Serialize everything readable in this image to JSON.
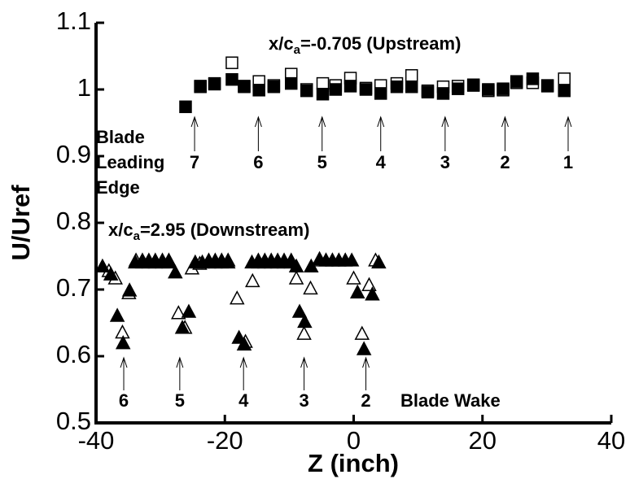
{
  "chart_data": {
    "type": "scatter",
    "xlabel": "Z (inch)",
    "ylabel": "U/Uref",
    "xlim": [
      -40,
      40
    ],
    "xticks": [
      -40,
      -20,
      0,
      20,
      40
    ],
    "ylim": [
      0.5,
      1.1
    ],
    "yticks": [
      0.5,
      0.6,
      0.7,
      0.8,
      0.9,
      1,
      1.1
    ],
    "series": [
      {
        "color": "#000000",
        "marker": "square",
        "filled": false,
        "x": [
          -23.8,
          -21.6,
          -18.9,
          -17,
          -14.7,
          -12.4,
          -9.7,
          -7.3,
          -4.8,
          -2.8,
          -0.5,
          1.9,
          4.2,
          6.7,
          9,
          11.5,
          13.9,
          16.2,
          18.6,
          20.9,
          23.2,
          25.3,
          27.8,
          30.1,
          32.7
        ],
        "values": [
          1.005,
          1.008,
          1.04,
          1.004,
          1.012,
          1.006,
          1.023,
          1.0,
          1.009,
          1.006,
          1.017,
          1.002,
          1.006,
          1.009,
          1.021,
          0.998,
          1.004,
          1.005,
          1.006,
          0.998,
          0.999,
          1.01,
          1.01,
          1.005,
          1.016
        ]
      },
      {
        "color": "#000000",
        "marker": "square",
        "filled": true,
        "x": [
          -26.1,
          -23.8,
          -21.6,
          -18.9,
          -17,
          -14.7,
          -12.4,
          -9.7,
          -7.3,
          -4.8,
          -2.8,
          -0.5,
          1.9,
          4.2,
          6.7,
          9,
          11.5,
          13.9,
          16.2,
          18.6,
          20.9,
          23.2,
          25.3,
          27.8,
          30.1,
          32.7
        ],
        "values": [
          0.974,
          1.004,
          1.009,
          1.015,
          1.005,
          0.999,
          1.004,
          1.009,
          0.998,
          0.993,
          1.0,
          1.005,
          1.0,
          0.994,
          1.004,
          1.004,
          0.996,
          0.994,
          1.001,
          1.007,
          1.0,
          1.001,
          1.012,
          1.016,
          1.006,
          0.998
        ]
      },
      {
        "color": "#000000",
        "marker": "triangle",
        "filled": false,
        "x": [
          -38,
          -37,
          -35.9,
          -34.9,
          -33.8,
          -32.8,
          -31.8,
          -30.8,
          -29.7,
          -28.7,
          -27.2,
          -26.2,
          -25.1,
          -23.9,
          -22.5,
          -21.5,
          -20.5,
          -19.5,
          -18.1,
          -16.8,
          -15.7,
          -14.8,
          -13.8,
          -12.8,
          -11.8,
          -10.8,
          -9.7,
          -8.9,
          -7.7,
          -6.7,
          -5.3,
          -4.3,
          -3.3,
          -2.3,
          -1.3,
          0,
          1.3,
          2.4,
          3.4
        ],
        "values": [
          0.728,
          0.717,
          0.636,
          0.695,
          0.744,
          0.744,
          0.744,
          0.744,
          0.744,
          0.744,
          0.665,
          0.643,
          0.732,
          0.739,
          0.744,
          0.744,
          0.744,
          0.744,
          0.687,
          0.622,
          0.713,
          0.744,
          0.744,
          0.744,
          0.744,
          0.744,
          0.744,
          0.717,
          0.634,
          0.702,
          0.744,
          0.744,
          0.744,
          0.744,
          0.744,
          0.717,
          0.634,
          0.707,
          0.744
        ]
      },
      {
        "color": "#000000",
        "marker": "triangle",
        "filled": true,
        "x": [
          -39,
          -37.7,
          -36.7,
          -35.8,
          -34.8,
          -33.9,
          -32.8,
          -31.8,
          -30.8,
          -29.7,
          -28.7,
          -27.7,
          -26.6,
          -25.6,
          -24.6,
          -23.5,
          -22.5,
          -21.5,
          -20.5,
          -19.5,
          -17.8,
          -17,
          -15.8,
          -14.8,
          -13.8,
          -12.8,
          -11.8,
          -10.8,
          -9.7,
          -8.9,
          -8.4,
          -7.6,
          -6.6,
          -5.3,
          -4.3,
          -3.3,
          -2.3,
          -1.3,
          -0.3,
          0.6,
          1.6,
          2.9,
          3.9
        ],
        "values": [
          0.735,
          0.723,
          0.661,
          0.62,
          0.699,
          0.741,
          0.741,
          0.741,
          0.741,
          0.741,
          0.741,
          0.726,
          0.643,
          0.667,
          0.741,
          0.741,
          0.741,
          0.741,
          0.741,
          0.741,
          0.628,
          0.618,
          0.741,
          0.741,
          0.741,
          0.741,
          0.741,
          0.741,
          0.741,
          0.735,
          0.667,
          0.652,
          0.735,
          0.746,
          0.744,
          0.744,
          0.744,
          0.744,
          0.744,
          0.696,
          0.611,
          0.693,
          0.741
        ]
      }
    ],
    "annotations": {
      "upstream": {
        "text": "x/c",
        "sub": "a",
        "rest": "=-0.705 (Upstream)"
      },
      "downstream": {
        "text": "x/c",
        "sub": "a",
        "rest": "=2.95 (Downstream)"
      },
      "leading_edge": [
        "Blade",
        "Leading",
        "Edge"
      ],
      "wake": "Blade Wake"
    },
    "upstream_markers": [
      {
        "label": "7",
        "x": -24.7
      },
      {
        "label": "6",
        "x": -14.8
      },
      {
        "label": "5",
        "x": -4.9
      },
      {
        "label": "4",
        "x": 4.2
      },
      {
        "label": "3",
        "x": 14.2
      },
      {
        "label": "2",
        "x": 23.5
      },
      {
        "label": "1",
        "x": 33.3
      }
    ],
    "downstream_markers": [
      {
        "label": "6",
        "x": -35.7
      },
      {
        "label": "5",
        "x": -27
      },
      {
        "label": "4",
        "x": -17.1
      },
      {
        "label": "3",
        "x": -7.7
      },
      {
        "label": "2",
        "x": 1.9
      }
    ]
  }
}
